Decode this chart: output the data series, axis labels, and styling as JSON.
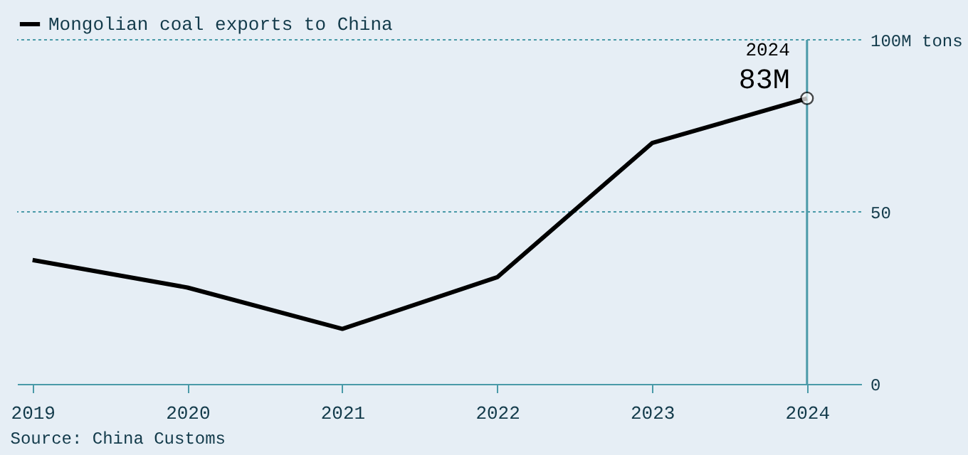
{
  "chart_data": {
    "type": "line",
    "x": [
      2019,
      2020,
      2021,
      2022,
      2023,
      2024
    ],
    "series": [
      {
        "name": "Mongolian coal exports to China",
        "color": "#000000",
        "values": [
          36,
          28,
          16,
          31,
          70,
          83
        ],
        "marker": "none"
      },
      {
        "type": "scatter",
        "color": "#000000",
        "x": [
          2024
        ],
        "values": [
          83
        ],
        "marker": "circle"
      }
    ],
    "xlim": [
      2018.9,
      2024.35
    ],
    "xticks": [
      2019,
      2020,
      2021,
      2022,
      2023,
      2024
    ],
    "ylim": [
      0,
      100
    ],
    "yticks": [
      0,
      50,
      {
        "value": 100,
        "label": "100M tons"
      }
    ],
    "legend": "top left",
    "line_style": "solid",
    "ref_lines": [
      {
        "axis": "x",
        "value": 2024,
        "color": "#4a9aa8"
      },
      {
        "axis": "y",
        "value": 50,
        "color": "#4a9aa8",
        "line_style": "dotted"
      },
      {
        "axis": "y",
        "value": 100,
        "color": "#4a9aa8",
        "line_style": "dotted"
      }
    ],
    "annotations": [
      {
        "text": "2024",
        "x": 2024,
        "y": 83
      },
      {
        "text": "83M",
        "x": 2024,
        "y": 83
      },
      "Source: China Customs"
    ]
  }
}
